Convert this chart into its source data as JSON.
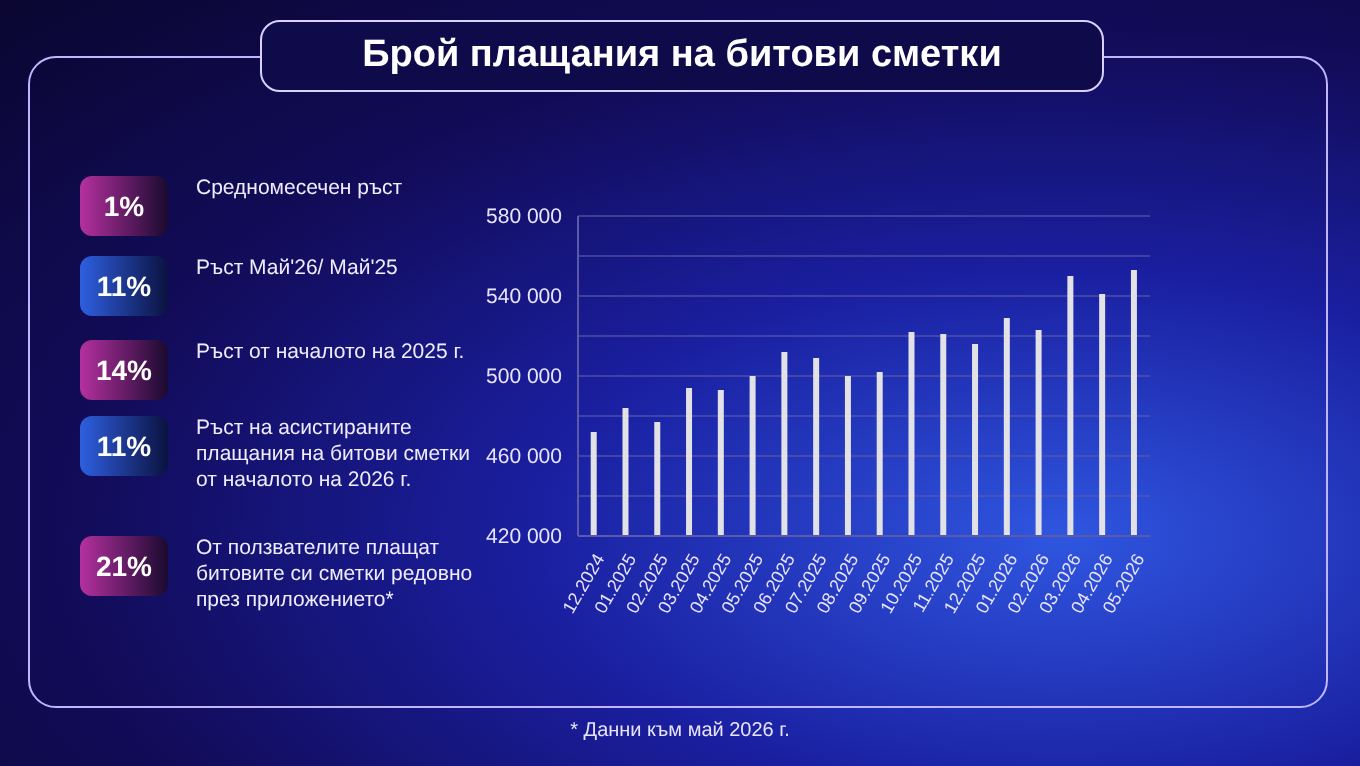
{
  "chart_data": [
    {
      "type": "other",
      "annotations": [
        "1%",
        "Средномесечен ръст",
        "11%",
        "Ръст Май'26/ Май'25",
        "14%",
        "Ръст от началото на 2025 г.",
        "11%",
        "Ръст на асистираните плащания на битови сметки от началото на 2026 г.",
        "21%",
        "От ползвателите плащат битовите си сметки редовно през приложението*"
      ]
    },
    {
      "type": "bar",
      "title": "Брой плащания на битови сметки",
      "categories": [
        "12.2024",
        "01.2025",
        "02.2025",
        "03.2025",
        "04.2025",
        "05.2025",
        "06.2025",
        "07.2025",
        "08.2025",
        "09.2025",
        "10.2025",
        "11.2025",
        "12.2025",
        "01.2026",
        "02.2026",
        "03.2026",
        "04.2026",
        "05.2026"
      ],
      "values": [
        472000,
        484000,
        477000,
        494000,
        493000,
        500000,
        512000,
        509000,
        500000,
        502000,
        522000,
        521000,
        516000,
        529000,
        523000,
        550000,
        541000,
        553000
      ],
      "color": "#e2e2e6",
      "ylim": [
        420000,
        580000
      ],
      "yticks": [
        {
          "value": 420000,
          "label": "420 000"
        },
        {
          "value": 440000,
          "label": null
        },
        {
          "value": 460000,
          "label": "460 000"
        },
        {
          "value": 480000,
          "label": null
        },
        {
          "value": 500000,
          "label": "500 000"
        },
        {
          "value": 520000,
          "label": null
        },
        {
          "value": 540000,
          "label": "540 000"
        },
        {
          "value": 560000,
          "label": null
        },
        {
          "value": 580000,
          "label": "580 000"
        }
      ],
      "grid": "y",
      "annotations": [
        "*  Данни към май 2026 г."
      ]
    }
  ]
}
